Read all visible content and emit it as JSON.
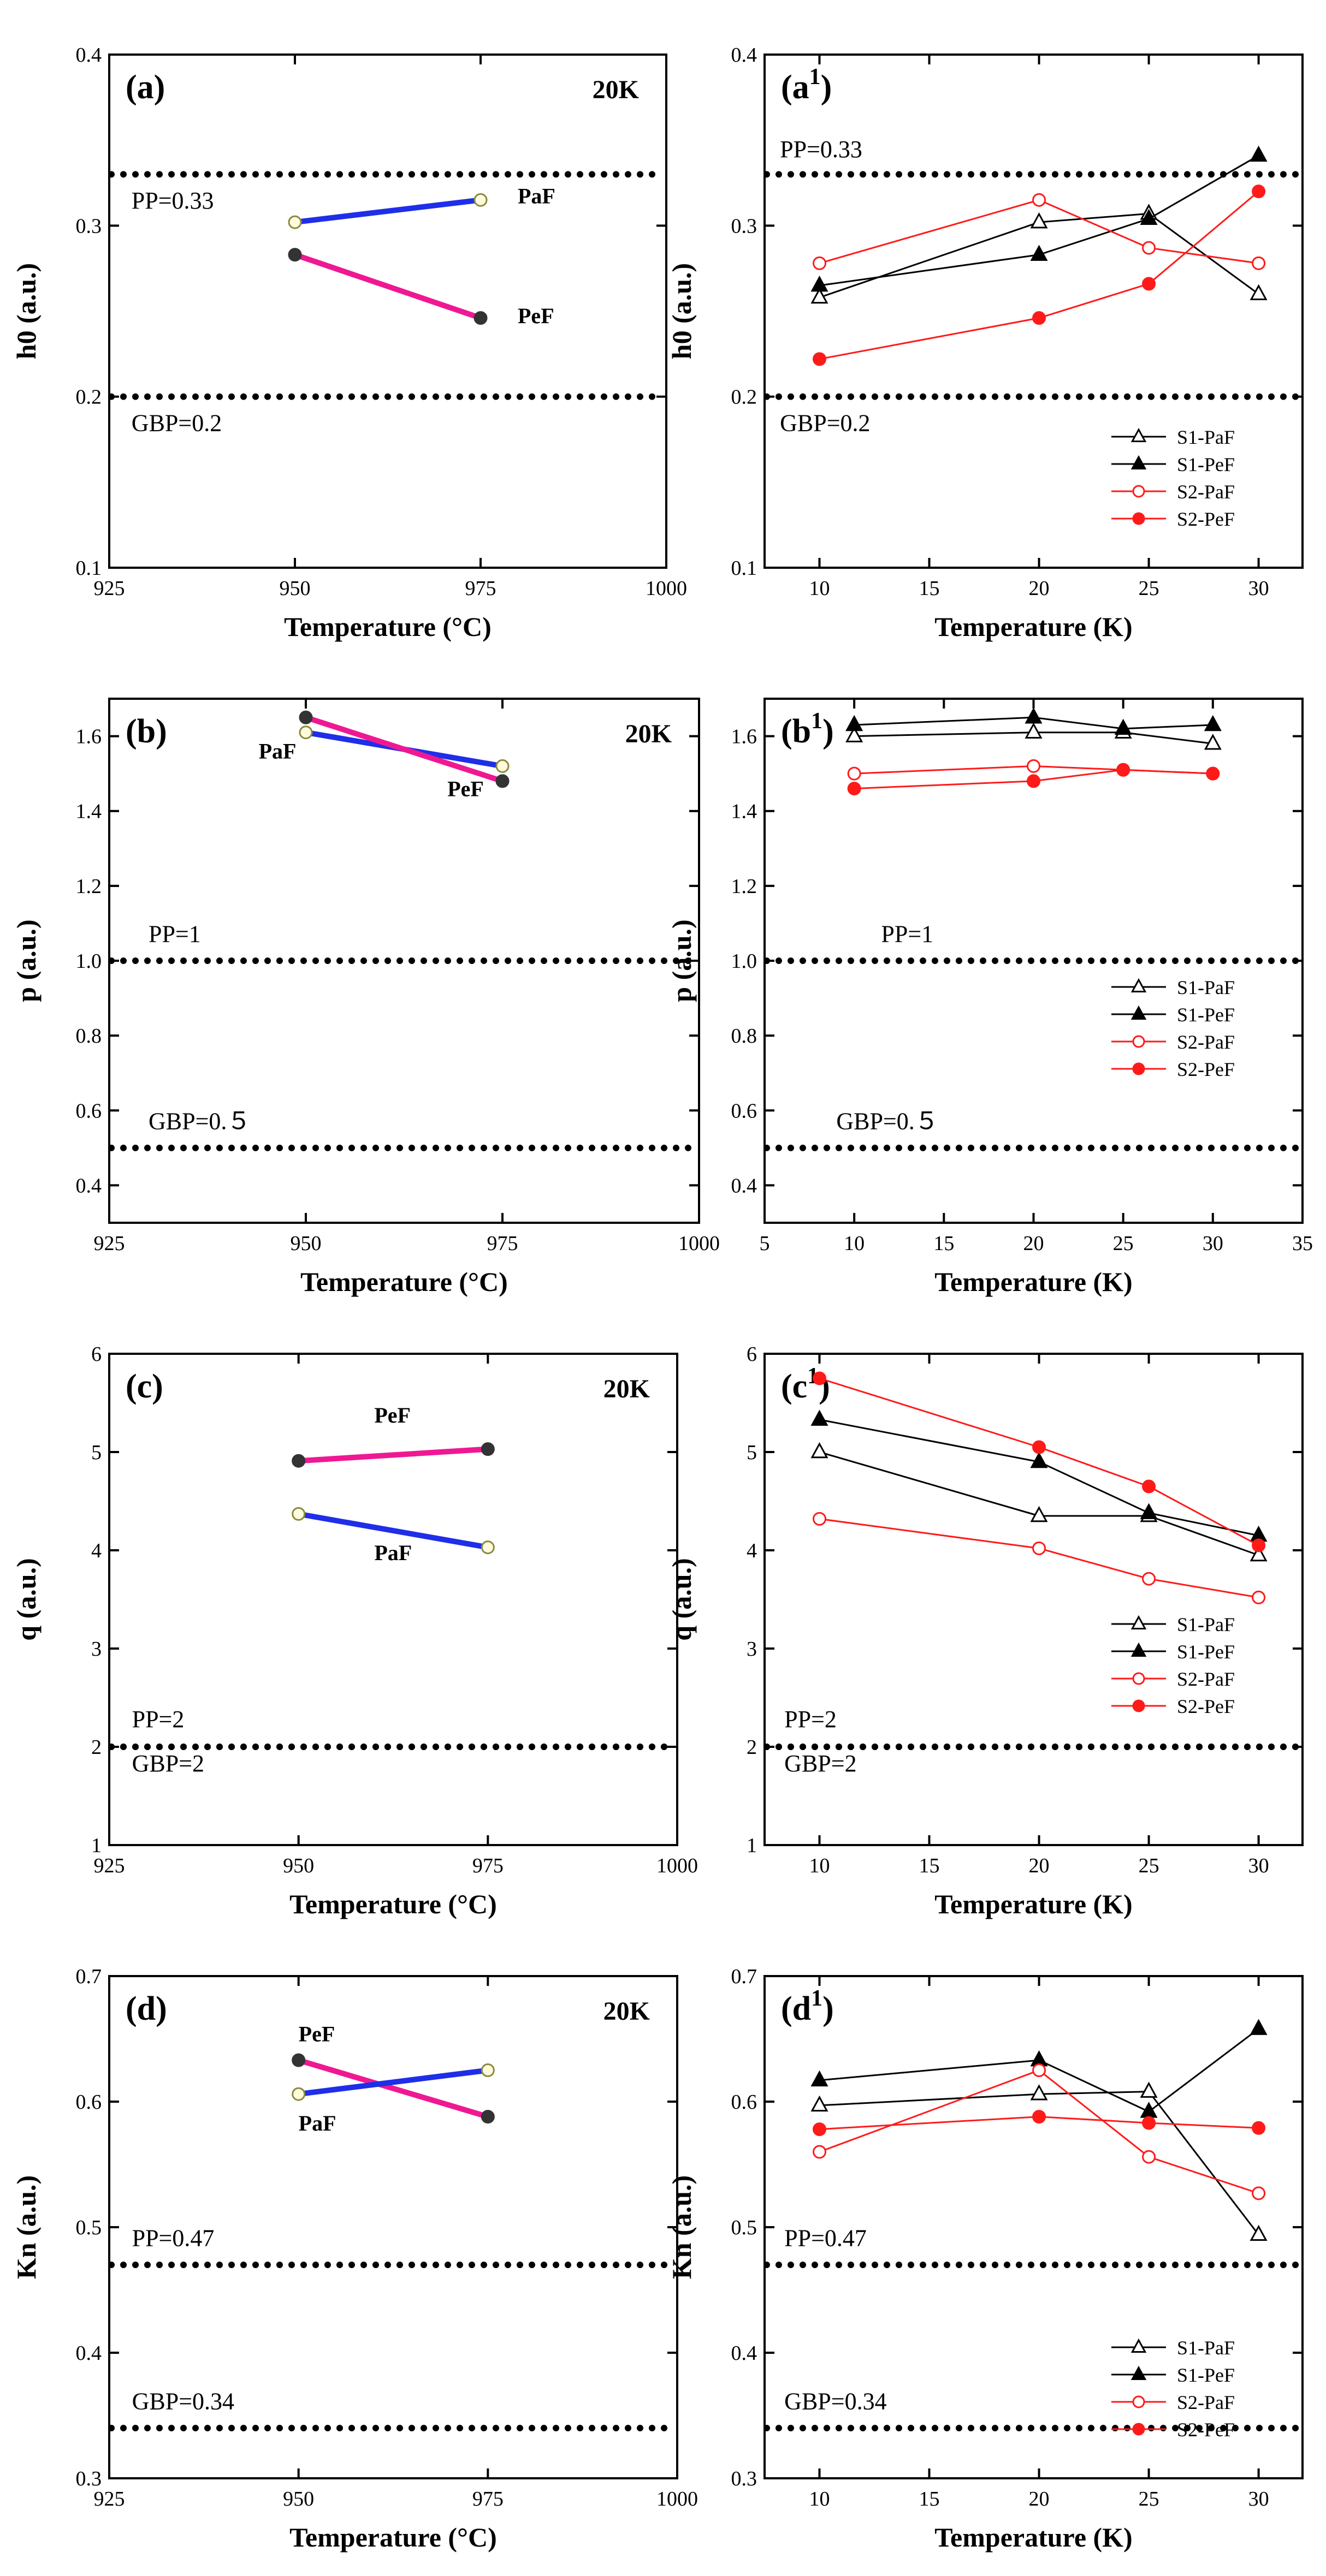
{
  "figure": {
    "background": "#ffffff",
    "axis_color": "#000000",
    "reference_line_color": "#000000"
  },
  "chart_data": [
    {
      "id": "a",
      "type": "line",
      "panel_label": "(a)",
      "corner_note": "20K",
      "xlabel": "Temperature (°C)",
      "ylabel": "h0 (a.u.)",
      "xlim": [
        925,
        1000
      ],
      "ylim": [
        0.1,
        0.4
      ],
      "xticks": [
        925,
        950,
        975,
        1000
      ],
      "yticks": [
        0.1,
        0.2,
        0.3,
        0.4
      ],
      "xtick_labels": [
        "925",
        "950",
        "975",
        "1000"
      ],
      "ytick_labels": [
        "0.1",
        "0.2",
        "0.3",
        "0.4"
      ],
      "reference_lines": [
        {
          "value": 0.33,
          "label": "PP=0.33",
          "label_at": [
            928,
            0.31
          ]
        },
        {
          "value": 0.2,
          "label": "GBP=0.2",
          "label_at": [
            928,
            0.18
          ]
        }
      ],
      "series": [
        {
          "name": "PaF",
          "color": "#1f2ee8",
          "stroke": 10,
          "marker_fill": "#fffbdc",
          "marker_edge": "#8a8a40",
          "x": [
            950,
            975
          ],
          "y": [
            0.302,
            0.315
          ],
          "label_at": [
            980,
            0.313
          ]
        },
        {
          "name": "PeF",
          "color": "#ef1893",
          "stroke": 10,
          "marker_fill": "#333333",
          "marker_edge": "#333333",
          "x": [
            950,
            975
          ],
          "y": [
            0.283,
            0.246
          ],
          "label_at": [
            980,
            0.243
          ]
        }
      ]
    },
    {
      "id": "a1",
      "type": "line",
      "panel_label": "(a",
      "panel_sup": "1",
      "panel_label_end": ")",
      "xlabel": "Temperature (K)",
      "ylabel": "h0 (a.u.)",
      "xlim": [
        7.5,
        32
      ],
      "ylim": [
        0.1,
        0.4
      ],
      "xticks": [
        10,
        15,
        20,
        25,
        30
      ],
      "yticks": [
        0.1,
        0.2,
        0.3,
        0.4
      ],
      "xtick_labels": [
        "10",
        "15",
        "20",
        "25",
        "30"
      ],
      "ytick_labels": [
        "0.1",
        "0.2",
        "0.3",
        "0.4"
      ],
      "reference_lines": [
        {
          "value": 0.33,
          "label": "PP=0.33",
          "label_at": [
            8.2,
            0.34
          ]
        },
        {
          "value": 0.2,
          "label": "GBP=0.2",
          "label_at": [
            8.2,
            0.18
          ]
        }
      ],
      "legend": {
        "position": "lower-right"
      },
      "series": [
        {
          "name": "S1-PaF",
          "color": "#000000",
          "stroke": 3,
          "marker": "triangle",
          "filled": false,
          "x": [
            10,
            20,
            25,
            30
          ],
          "y": [
            0.258,
            0.302,
            0.307,
            0.26
          ]
        },
        {
          "name": "S1-PeF",
          "color": "#000000",
          "stroke": 3,
          "marker": "triangle",
          "filled": true,
          "x": [
            10,
            20,
            25,
            30
          ],
          "y": [
            0.265,
            0.283,
            0.304,
            0.341
          ]
        },
        {
          "name": "S2-PaF",
          "color": "#ff1a1a",
          "stroke": 3,
          "marker": "circle",
          "filled": false,
          "x": [
            10,
            20,
            25,
            30
          ],
          "y": [
            0.278,
            0.315,
            0.287,
            0.278
          ]
        },
        {
          "name": "S2-PeF",
          "color": "#ff1a1a",
          "stroke": 3,
          "marker": "circle",
          "filled": true,
          "x": [
            10,
            20,
            25,
            30
          ],
          "y": [
            0.222,
            0.246,
            0.266,
            0.32
          ]
        }
      ]
    },
    {
      "id": "b",
      "type": "line",
      "panel_label": "(b)",
      "corner_note": "20K",
      "xlabel": "Temperature (°C)",
      "ylabel": "p (a.u.)",
      "xlim": [
        925,
        1000
      ],
      "ylim": [
        0.3,
        1.7
      ],
      "xticks": [
        925,
        950,
        975,
        1000
      ],
      "yticks": [
        0.4,
        0.6,
        0.8,
        1.0,
        1.2,
        1.4,
        1.6
      ],
      "xtick_labels": [
        "925",
        "950",
        "975",
        "1000"
      ],
      "ytick_labels": [
        "0.4",
        "0.6",
        "0.8",
        "1.0",
        "1.2",
        "1.4",
        "1.6"
      ],
      "reference_lines": [
        {
          "value": 1.0,
          "label": "PP=1",
          "label_at": [
            930,
            1.05
          ]
        },
        {
          "value": 0.5,
          "label": "GBP=0.５",
          "label_at": [
            930,
            0.55
          ]
        }
      ],
      "series": [
        {
          "name": "PaF",
          "color": "#1f2ee8",
          "stroke": 10,
          "marker_fill": "#fffbdc",
          "marker_edge": "#8a8a40",
          "x": [
            950,
            975
          ],
          "y": [
            1.61,
            1.52
          ],
          "label_at": [
            944,
            1.54
          ]
        },
        {
          "name": "PeF",
          "color": "#ef1893",
          "stroke": 10,
          "marker_fill": "#333333",
          "marker_edge": "#333333",
          "x": [
            950,
            975
          ],
          "y": [
            1.65,
            1.48
          ],
          "label_at": [
            968,
            1.44
          ]
        }
      ]
    },
    {
      "id": "b1",
      "type": "line",
      "panel_label": "(b",
      "panel_sup": "1",
      "panel_label_end": ")",
      "xlabel": "Temperature (K)",
      "ylabel": "p (a.u.)",
      "xlim": [
        5,
        35
      ],
      "ylim": [
        0.3,
        1.7
      ],
      "xticks": [
        5,
        10,
        15,
        20,
        25,
        30,
        35
      ],
      "yticks": [
        0.4,
        0.6,
        0.8,
        1.0,
        1.2,
        1.4,
        1.6
      ],
      "xtick_labels": [
        "5",
        "10",
        "15",
        "20",
        "25",
        "30",
        "35"
      ],
      "ytick_labels": [
        "0.4",
        "0.6",
        "0.8",
        "1.0",
        "1.2",
        "1.4",
        "1.6"
      ],
      "reference_lines": [
        {
          "value": 1.0,
          "label": "PP=1",
          "label_at": [
            11.5,
            1.05
          ]
        },
        {
          "value": 0.5,
          "label": "GBP=0.５",
          "label_at": [
            9,
            0.55
          ]
        }
      ],
      "legend": {
        "position": "right"
      },
      "series": [
        {
          "name": "S1-PaF",
          "color": "#000000",
          "stroke": 3,
          "marker": "triangle",
          "filled": false,
          "x": [
            10,
            20,
            25,
            30
          ],
          "y": [
            1.6,
            1.61,
            1.61,
            1.58
          ]
        },
        {
          "name": "S1-PeF",
          "color": "#000000",
          "stroke": 3,
          "marker": "triangle",
          "filled": true,
          "x": [
            10,
            20,
            25,
            30
          ],
          "y": [
            1.63,
            1.65,
            1.62,
            1.63
          ]
        },
        {
          "name": "S2-PaF",
          "color": "#ff1a1a",
          "stroke": 3,
          "marker": "circle",
          "filled": false,
          "x": [
            10,
            20,
            25,
            30
          ],
          "y": [
            1.5,
            1.52,
            1.51,
            1.5
          ]
        },
        {
          "name": "S2-PeF",
          "color": "#ff1a1a",
          "stroke": 3,
          "marker": "circle",
          "filled": true,
          "x": [
            10,
            20,
            25,
            30
          ],
          "y": [
            1.46,
            1.48,
            1.51,
            1.5
          ]
        }
      ]
    },
    {
      "id": "c",
      "type": "line",
      "panel_label": "(c)",
      "corner_note": "20K",
      "xlabel": "Temperature (°C)",
      "ylabel": "q (a.u.)",
      "xlim": [
        925,
        1000
      ],
      "ylim": [
        1,
        6
      ],
      "xticks": [
        925,
        950,
        975,
        1000
      ],
      "yticks": [
        1,
        2,
        3,
        4,
        5,
        6
      ],
      "xtick_labels": [
        "925",
        "950",
        "975",
        "1000"
      ],
      "ytick_labels": [
        "1",
        "2",
        "3",
        "4",
        "5",
        "6"
      ],
      "reference_lines": [
        {
          "value": 2,
          "label": "PP=2",
          "label_at": [
            928,
            2.2
          ]
        },
        {
          "value": 2,
          "label": "GBP=2",
          "label_at": [
            928,
            1.75
          ]
        }
      ],
      "series": [
        {
          "name": "PeF",
          "color": "#ef1893",
          "stroke": 10,
          "marker_fill": "#333333",
          "marker_edge": "#333333",
          "x": [
            950,
            975
          ],
          "y": [
            4.91,
            5.03
          ],
          "label_at": [
            960,
            5.3
          ]
        },
        {
          "name": "PaF",
          "color": "#1f2ee8",
          "stroke": 10,
          "marker_fill": "#fffbdc",
          "marker_edge": "#8a8a40",
          "x": [
            950,
            975
          ],
          "y": [
            4.37,
            4.03
          ],
          "label_at": [
            960,
            3.9
          ]
        }
      ]
    },
    {
      "id": "c1",
      "type": "line",
      "panel_label": "(c",
      "panel_sup": "1",
      "panel_label_end": ")",
      "xlabel": "Temperature (K)",
      "ylabel": "q (a.u.)",
      "xlim": [
        7.5,
        32
      ],
      "ylim": [
        1,
        6
      ],
      "xticks": [
        10,
        15,
        20,
        25,
        30
      ],
      "yticks": [
        1,
        2,
        3,
        4,
        5,
        6
      ],
      "xtick_labels": [
        "10",
        "15",
        "20",
        "25",
        "30"
      ],
      "ytick_labels": [
        "1",
        "2",
        "3",
        "4",
        "5",
        "6"
      ],
      "reference_lines": [
        {
          "value": 2,
          "label": "PP=2",
          "label_at": [
            8.4,
            2.2
          ]
        },
        {
          "value": 2,
          "label": "GBP=2",
          "label_at": [
            8.4,
            1.75
          ]
        }
      ],
      "legend": {
        "position": "right"
      },
      "series": [
        {
          "name": "S1-PaF",
          "color": "#000000",
          "stroke": 3,
          "marker": "triangle",
          "filled": false,
          "x": [
            10,
            20,
            25,
            30
          ],
          "y": [
            5.0,
            4.35,
            4.35,
            3.95
          ]
        },
        {
          "name": "S1-PeF",
          "color": "#000000",
          "stroke": 3,
          "marker": "triangle",
          "filled": true,
          "x": [
            10,
            20,
            25,
            30
          ],
          "y": [
            5.33,
            4.9,
            4.38,
            4.15
          ]
        },
        {
          "name": "S2-PaF",
          "color": "#ff1a1a",
          "stroke": 3,
          "marker": "circle",
          "filled": false,
          "x": [
            10,
            20,
            25,
            30
          ],
          "y": [
            4.32,
            4.02,
            3.71,
            3.52
          ]
        },
        {
          "name": "S2-PeF",
          "color": "#ff1a1a",
          "stroke": 3,
          "marker": "circle",
          "filled": true,
          "x": [
            10,
            20,
            25,
            30
          ],
          "y": [
            5.75,
            5.05,
            4.65,
            4.05
          ]
        }
      ]
    },
    {
      "id": "d",
      "type": "line",
      "panel_label": "(d)",
      "corner_note": "20K",
      "xlabel": "Temperature (°C)",
      "ylabel": "Kn (a.u.)",
      "xlim": [
        925,
        1000
      ],
      "ylim": [
        0.3,
        0.7
      ],
      "xticks": [
        925,
        950,
        975,
        1000
      ],
      "yticks": [
        0.3,
        0.4,
        0.5,
        0.6,
        0.7
      ],
      "xtick_labels": [
        "925",
        "950",
        "975",
        "1000"
      ],
      "ytick_labels": [
        "0.3",
        "0.4",
        "0.5",
        "0.6",
        "0.7"
      ],
      "reference_lines": [
        {
          "value": 0.47,
          "label": "PP=0.47",
          "label_at": [
            928,
            0.485
          ]
        },
        {
          "value": 0.34,
          "label": "GBP=0.34",
          "label_at": [
            928,
            0.355
          ]
        }
      ],
      "series": [
        {
          "name": "PeF",
          "color": "#ef1893",
          "stroke": 10,
          "marker_fill": "#333333",
          "marker_edge": "#333333",
          "x": [
            950,
            975
          ],
          "y": [
            0.633,
            0.588
          ],
          "label_at": [
            950,
            0.648
          ]
        },
        {
          "name": "PaF",
          "color": "#1f2ee8",
          "stroke": 10,
          "marker_fill": "#fffbdc",
          "marker_edge": "#8a8a40",
          "x": [
            950,
            975
          ],
          "y": [
            0.606,
            0.625
          ],
          "label_at": [
            950,
            0.577
          ]
        }
      ]
    },
    {
      "id": "d1",
      "type": "line",
      "panel_label": "(d",
      "panel_sup": "1",
      "panel_label_end": ")",
      "xlabel": "Temperature (K)",
      "ylabel": "Kn (a.u.)",
      "xlim": [
        7.5,
        32
      ],
      "ylim": [
        0.3,
        0.7
      ],
      "xticks": [
        10,
        15,
        20,
        25,
        30
      ],
      "yticks": [
        0.3,
        0.4,
        0.5,
        0.6,
        0.7
      ],
      "xtick_labels": [
        "10",
        "15",
        "20",
        "25",
        "30"
      ],
      "ytick_labels": [
        "0.3",
        "0.4",
        "0.5",
        "0.6",
        "0.7"
      ],
      "reference_lines": [
        {
          "value": 0.47,
          "label": "PP=0.47",
          "label_at": [
            8.4,
            0.485
          ]
        },
        {
          "value": 0.34,
          "label": "GBP=0.34",
          "label_at": [
            8.4,
            0.355
          ]
        }
      ],
      "legend": {
        "position": "lower-right"
      },
      "series": [
        {
          "name": "S1-PaF",
          "color": "#000000",
          "stroke": 3,
          "marker": "triangle",
          "filled": false,
          "x": [
            10,
            20,
            25,
            30
          ],
          "y": [
            0.597,
            0.606,
            0.608,
            0.494
          ]
        },
        {
          "name": "S1-PeF",
          "color": "#000000",
          "stroke": 3,
          "marker": "triangle",
          "filled": true,
          "x": [
            10,
            20,
            25,
            30
          ],
          "y": [
            0.617,
            0.633,
            0.592,
            0.658
          ]
        },
        {
          "name": "S2-PaF",
          "color": "#ff1a1a",
          "stroke": 3,
          "marker": "circle",
          "filled": false,
          "x": [
            10,
            20,
            25,
            30
          ],
          "y": [
            0.56,
            0.625,
            0.556,
            0.527
          ]
        },
        {
          "name": "S2-PeF",
          "color": "#ff1a1a",
          "stroke": 3,
          "marker": "circle",
          "filled": true,
          "x": [
            10,
            20,
            25,
            30
          ],
          "y": [
            0.578,
            0.588,
            0.583,
            0.579
          ]
        }
      ]
    }
  ]
}
